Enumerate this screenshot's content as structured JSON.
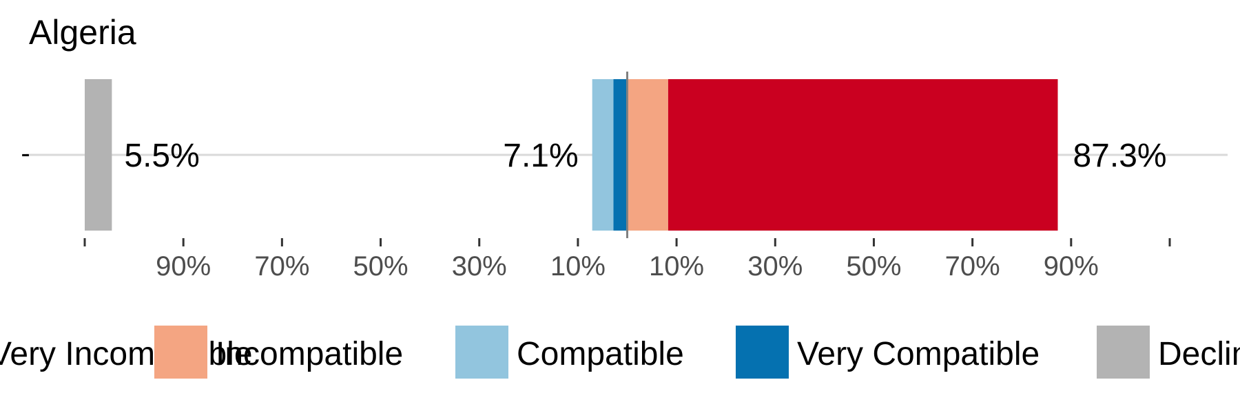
{
  "chart_data": {
    "type": "bar",
    "orientation": "horizontal",
    "stacked": "diverging",
    "title": "Algeria",
    "row_label": "-",
    "x_range": [
      -110,
      110
    ],
    "center": 0,
    "segments": [
      {
        "name": "Very Compatible",
        "value": 2.8,
        "side": "left",
        "color": "#0571b0"
      },
      {
        "name": "Compatible",
        "value": 4.3,
        "side": "left",
        "color": "#92c5de"
      },
      {
        "name": "Incompatible",
        "value": 8.3,
        "side": "right",
        "color": "#f4a582"
      },
      {
        "name": "Very Incompatible",
        "value": 79.0,
        "side": "right",
        "color": "#ca0020"
      }
    ],
    "declined": {
      "name": "Declined to answer",
      "value": 5.5,
      "color": "#b3b3b3"
    },
    "totals": {
      "declined": "5.5%",
      "compatible": "7.1%",
      "incompatible": "87.3%"
    },
    "x_ticks": [
      {
        "value": -90,
        "label": "90%"
      },
      {
        "value": -70,
        "label": "70%"
      },
      {
        "value": -50,
        "label": "50%"
      },
      {
        "value": -30,
        "label": "30%"
      },
      {
        "value": -10,
        "label": "10%"
      },
      {
        "value": 10,
        "label": "10%"
      },
      {
        "value": 30,
        "label": "30%"
      },
      {
        "value": 50,
        "label": "50%"
      },
      {
        "value": 70,
        "label": "70%"
      },
      {
        "value": 90,
        "label": "90%"
      }
    ],
    "x_edge_ticks": [
      -110,
      110
    ],
    "legend": {
      "placement": "bottom",
      "items": [
        {
          "label": "Very Incompatible",
          "color": "#ca0020"
        },
        {
          "label": "Incompatible",
          "color": "#f4a582"
        },
        {
          "label": "Compatible",
          "color": "#92c5de"
        },
        {
          "label": "Very Compatible",
          "color": "#0571b0"
        },
        {
          "label": "Declined to answer",
          "color": "#b3b3b3"
        }
      ]
    },
    "colors": {
      "gridline": "#d9d9d9",
      "center_line": "#808080",
      "tick_text": "#4d4d4d",
      "text": "#000000"
    }
  }
}
